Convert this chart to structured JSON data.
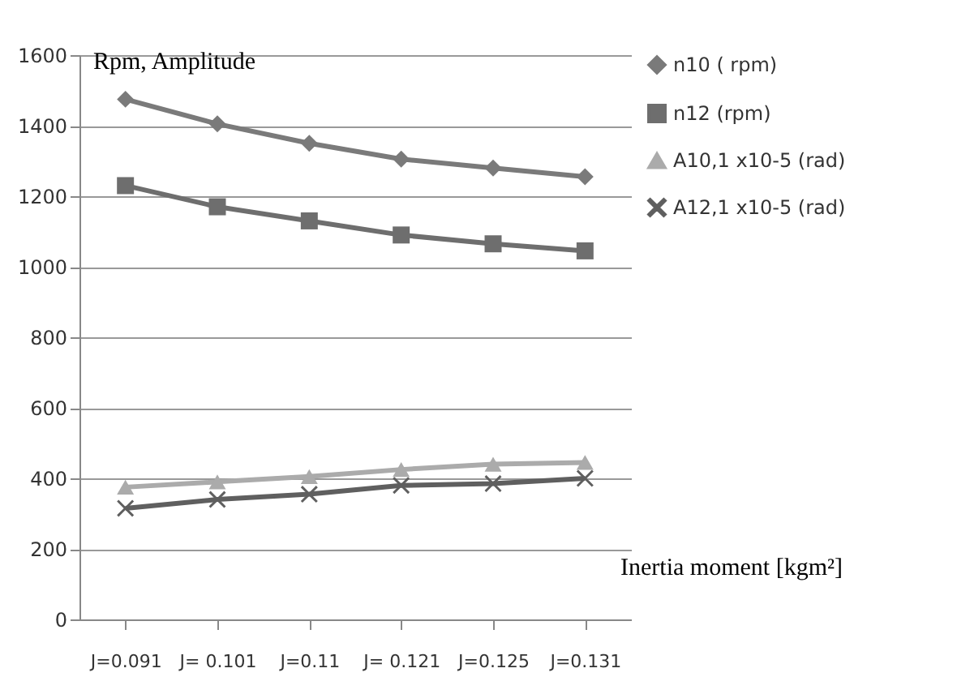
{
  "chart_data": {
    "type": "line",
    "ylabel": "Rpm,    Amplitude",
    "xlabel": "Inertia moment [kgm²]",
    "categories": [
      "J=0.091",
      "J= 0.101",
      "J=0.11",
      "J= 0.121",
      "J=0.125",
      "J=0.131"
    ],
    "series": [
      {
        "name": "n10 ( rpm)",
        "color": "#7a7a7a",
        "marker": "diamond",
        "values": [
          1475,
          1405,
          1350,
          1305,
          1280,
          1255
        ]
      },
      {
        "name": "n12 (rpm)",
        "color": "#6e6e6e",
        "marker": "square",
        "values": [
          1230,
          1170,
          1130,
          1090,
          1065,
          1045
        ]
      },
      {
        "name": "A10,1 x10-5  (rad)",
        "color": "#ababab",
        "marker": "triangle",
        "values": [
          375,
          390,
          405,
          425,
          440,
          445
        ]
      },
      {
        "name": "A12,1 x10-5  (rad)",
        "color": "#5f5f5f",
        "marker": "cross",
        "values": [
          315,
          340,
          355,
          380,
          385,
          400
        ]
      }
    ],
    "ylim": [
      0,
      1600
    ],
    "yticks": [
      0,
      200,
      400,
      600,
      800,
      1000,
      1200,
      1400,
      1600
    ],
    "grid": "y",
    "legend": "right",
    "line_style": "solid"
  }
}
